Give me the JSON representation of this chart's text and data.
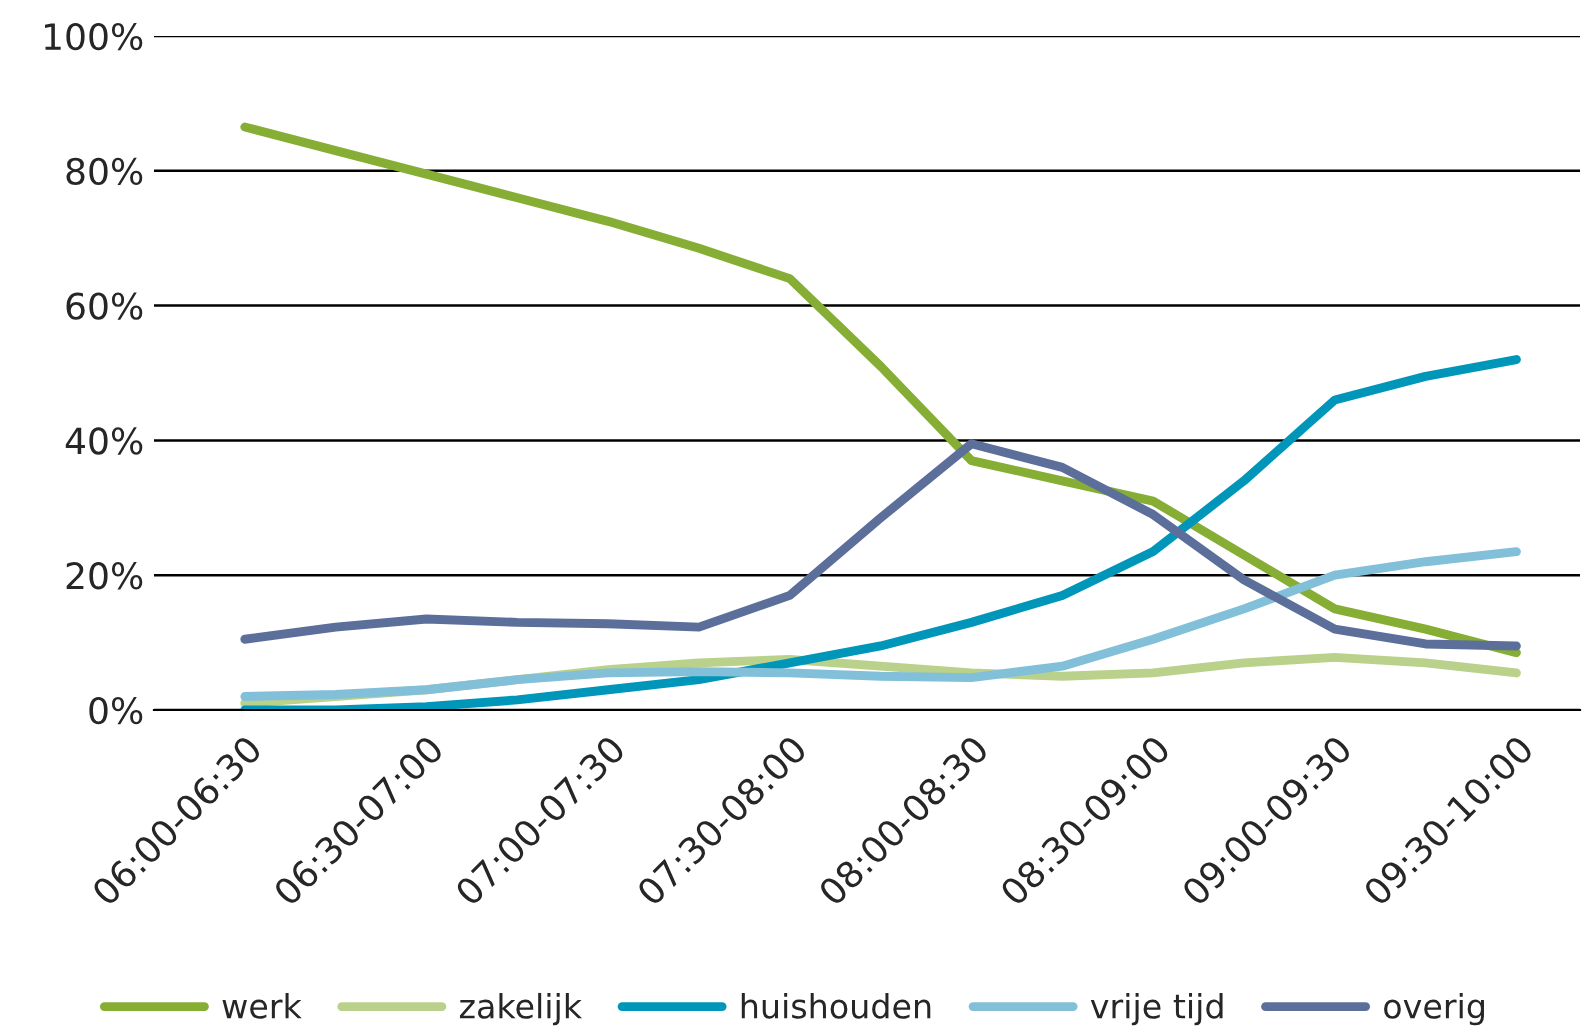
{
  "chart_data": {
    "type": "line",
    "categories": [
      "06:00-06:30",
      null,
      "06:30-07:00",
      null,
      "07:00-07:30",
      null,
      "07:30-08:00",
      null,
      "08:00-08:30",
      null,
      "08:30-09:00",
      null,
      "09:00-09:30",
      null,
      "09:30-10:00"
    ],
    "series": [
      {
        "name": "werk",
        "color": "#86ad34",
        "values": [
          86.5,
          83,
          79.5,
          76,
          72.5,
          68.5,
          64,
          51,
          37,
          34,
          31,
          23,
          15,
          12,
          8.5
        ]
      },
      {
        "name": "zakelijk",
        "color": "#b9d18a",
        "values": [
          1,
          2,
          3,
          4.5,
          6,
          7,
          7.5,
          6.5,
          5.5,
          5,
          5.5,
          7,
          7.8,
          7,
          5.5
        ]
      },
      {
        "name": "huishouden",
        "color": "#0096b9",
        "values": [
          0,
          0,
          0.5,
          1.5,
          3,
          4.5,
          7,
          9.5,
          13,
          17,
          23.5,
          34,
          46,
          49.5,
          52
        ]
      },
      {
        "name": "vrije tijd",
        "color": "#82bfd8",
        "values": [
          2,
          2.3,
          3,
          4.5,
          5.5,
          5.7,
          5.5,
          5,
          4.8,
          6.5,
          10.5,
          15,
          20,
          22,
          23.5
        ]
      },
      {
        "name": "overig",
        "color": "#5c6f9a",
        "values": [
          10.5,
          12.3,
          13.5,
          13,
          12.8,
          12.3,
          17,
          28.5,
          39.5,
          36,
          29,
          19.3,
          12,
          9.8,
          9.5
        ]
      }
    ],
    "ylim": [
      0,
      100
    ],
    "yticks": [
      {
        "value": 0,
        "label": "0%"
      },
      {
        "value": 20,
        "label": "20%"
      },
      {
        "value": 40,
        "label": "40%"
      },
      {
        "value": 60,
        "label": "60%"
      },
      {
        "value": 80,
        "label": "80%"
      },
      {
        "value": 100,
        "label": "100%"
      }
    ],
    "grid": "y",
    "legend": "bottom",
    "marker": "none",
    "line_style": "solid"
  }
}
